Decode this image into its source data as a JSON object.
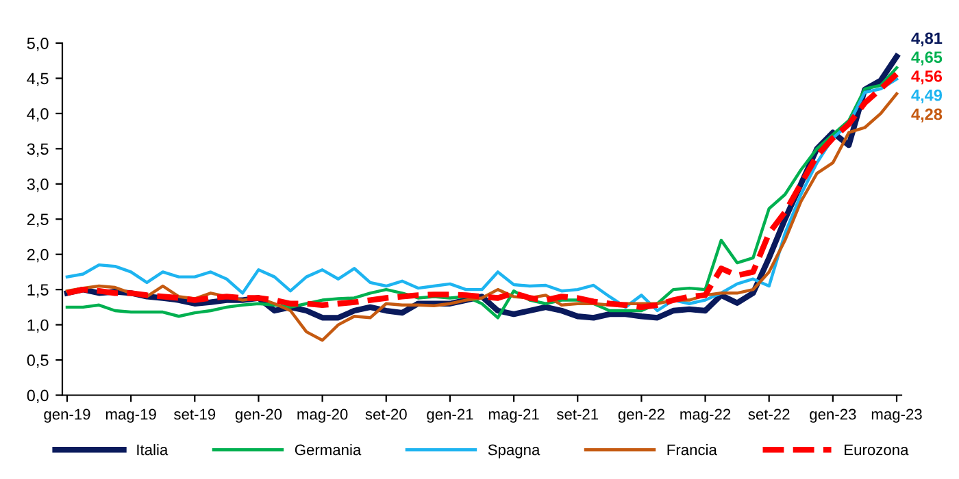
{
  "chart_data": {
    "type": "line",
    "categories": [
      "gen-19",
      null,
      null,
      null,
      "mag-19",
      null,
      null,
      null,
      "set-19",
      null,
      null,
      null,
      "gen-20",
      null,
      null,
      null,
      "mag-20",
      null,
      null,
      null,
      "set-20",
      null,
      null,
      null,
      "gen-21",
      null,
      null,
      null,
      "mag-21",
      null,
      null,
      null,
      "set-21",
      null,
      null,
      null,
      "gen-22",
      null,
      null,
      null,
      "mag-22",
      null,
      null,
      null,
      "set-22",
      null,
      null,
      null,
      "gen-23",
      null,
      null,
      null,
      "mag-23"
    ],
    "ylim": [
      0,
      5
    ],
    "yticks": [
      {
        "value": 0,
        "label": "0,0"
      },
      {
        "value": 0.5,
        "label": "0,5"
      },
      {
        "value": 1,
        "label": "1,0"
      },
      {
        "value": 1.5,
        "label": "1,5"
      },
      {
        "value": 2,
        "label": "2,0"
      },
      {
        "value": 2.5,
        "label": "2,5"
      },
      {
        "value": 3,
        "label": "3,0"
      },
      {
        "value": 3.5,
        "label": "3,5"
      },
      {
        "value": 4,
        "label": "4,0"
      },
      {
        "value": 4.5,
        "label": "4,5"
      },
      {
        "value": 5,
        "label": "5,0"
      }
    ],
    "grid": false,
    "legend": "bottom",
    "marker": "none",
    "series": [
      {
        "name": "Italia",
        "color": "#0a1a5c",
        "line_style": "solid",
        "values": [
          1.45,
          1.5,
          1.45,
          1.47,
          1.45,
          1.4,
          1.38,
          1.35,
          1.3,
          1.32,
          1.35,
          1.35,
          1.38,
          1.2,
          1.25,
          1.2,
          1.1,
          1.1,
          1.2,
          1.25,
          1.2,
          1.17,
          1.3,
          1.3,
          1.3,
          1.35,
          1.4,
          1.2,
          1.15,
          1.2,
          1.25,
          1.2,
          1.12,
          1.1,
          1.15,
          1.15,
          1.12,
          1.1,
          1.2,
          1.22,
          1.2,
          1.42,
          1.31,
          1.45,
          1.95,
          2.5,
          3.0,
          3.5,
          3.73,
          3.55,
          4.34,
          4.47,
          4.81
        ],
        "value_labels": [
          null,
          null,
          null,
          null,
          null,
          null,
          null,
          null,
          null,
          null,
          null,
          null,
          null,
          null,
          null,
          null,
          null,
          null,
          null,
          null,
          null,
          null,
          null,
          null,
          null,
          null,
          null,
          null,
          null,
          null,
          null,
          null,
          null,
          null,
          null,
          null,
          null,
          null,
          null,
          null,
          null,
          null,
          null,
          null,
          null,
          null,
          null,
          null,
          null,
          null,
          null,
          null,
          "4,81"
        ]
      },
      {
        "name": "Germania",
        "color": "#00b050",
        "line_style": "solid",
        "values": [
          1.25,
          1.25,
          1.28,
          1.2,
          1.18,
          1.18,
          1.18,
          1.12,
          1.17,
          1.2,
          1.25,
          1.28,
          1.3,
          1.28,
          1.25,
          1.3,
          1.35,
          1.37,
          1.38,
          1.45,
          1.5,
          1.45,
          1.38,
          1.4,
          1.38,
          1.4,
          1.3,
          1.1,
          1.48,
          1.35,
          1.3,
          1.35,
          1.35,
          1.3,
          1.2,
          1.2,
          1.2,
          1.3,
          1.5,
          1.52,
          1.5,
          2.2,
          1.88,
          1.95,
          2.65,
          2.85,
          3.2,
          3.5,
          3.7,
          3.9,
          4.35,
          4.4,
          4.65
        ],
        "value_labels": [
          null,
          null,
          null,
          null,
          null,
          null,
          null,
          null,
          null,
          null,
          null,
          null,
          null,
          null,
          null,
          null,
          null,
          null,
          null,
          null,
          null,
          null,
          null,
          null,
          null,
          null,
          null,
          null,
          null,
          null,
          null,
          null,
          null,
          null,
          null,
          null,
          null,
          null,
          null,
          null,
          null,
          null,
          null,
          null,
          null,
          null,
          null,
          null,
          null,
          null,
          null,
          null,
          "4,65"
        ]
      },
      {
        "name": "Spagna",
        "color": "#1eb4f0",
        "line_style": "solid",
        "values": [
          1.68,
          1.72,
          1.85,
          1.83,
          1.75,
          1.6,
          1.75,
          1.68,
          1.68,
          1.75,
          1.65,
          1.45,
          1.78,
          1.68,
          1.48,
          1.68,
          1.78,
          1.65,
          1.8,
          1.6,
          1.55,
          1.62,
          1.52,
          1.55,
          1.58,
          1.5,
          1.5,
          1.75,
          1.57,
          1.55,
          1.56,
          1.48,
          1.5,
          1.56,
          1.4,
          1.25,
          1.42,
          1.2,
          1.35,
          1.3,
          1.35,
          1.45,
          1.58,
          1.65,
          1.55,
          2.3,
          2.85,
          3.3,
          3.65,
          3.85,
          4.3,
          4.35,
          4.49
        ],
        "value_labels": [
          null,
          null,
          null,
          null,
          null,
          null,
          null,
          null,
          null,
          null,
          null,
          null,
          null,
          null,
          null,
          null,
          null,
          null,
          null,
          null,
          null,
          null,
          null,
          null,
          null,
          null,
          null,
          null,
          null,
          null,
          null,
          null,
          null,
          null,
          null,
          null,
          null,
          null,
          null,
          null,
          null,
          null,
          null,
          null,
          null,
          null,
          null,
          null,
          null,
          null,
          null,
          null,
          "4,49"
        ]
      },
      {
        "name": "Francia",
        "color": "#c55a11",
        "line_style": "solid",
        "values": [
          1.48,
          1.52,
          1.55,
          1.53,
          1.45,
          1.4,
          1.55,
          1.4,
          1.37,
          1.45,
          1.4,
          1.35,
          1.38,
          1.3,
          1.2,
          0.9,
          0.78,
          1.0,
          1.12,
          1.1,
          1.3,
          1.28,
          1.28,
          1.27,
          1.3,
          1.35,
          1.38,
          1.5,
          1.4,
          1.38,
          1.42,
          1.28,
          1.3,
          1.3,
          1.28,
          1.3,
          1.3,
          1.3,
          1.35,
          1.35,
          1.42,
          1.45,
          1.45,
          1.5,
          1.75,
          2.2,
          2.75,
          3.15,
          3.3,
          3.73,
          3.8,
          4.0,
          4.28
        ],
        "value_labels": [
          null,
          null,
          null,
          null,
          null,
          null,
          null,
          null,
          null,
          null,
          null,
          null,
          null,
          null,
          null,
          null,
          null,
          null,
          null,
          null,
          null,
          null,
          null,
          null,
          null,
          null,
          null,
          null,
          null,
          null,
          null,
          null,
          null,
          null,
          null,
          null,
          null,
          null,
          null,
          null,
          null,
          null,
          null,
          null,
          null,
          null,
          null,
          null,
          null,
          null,
          null,
          null,
          "4,28"
        ]
      },
      {
        "name": "Eurozona",
        "color": "#ff0000",
        "line_style": "dashed",
        "values": [
          1.45,
          1.5,
          1.48,
          1.45,
          1.45,
          1.42,
          1.4,
          1.38,
          1.35,
          1.38,
          1.4,
          1.38,
          1.38,
          1.35,
          1.3,
          1.3,
          1.28,
          1.3,
          1.32,
          1.35,
          1.38,
          1.4,
          1.42,
          1.43,
          1.43,
          1.42,
          1.4,
          1.38,
          1.45,
          1.38,
          1.35,
          1.4,
          1.38,
          1.33,
          1.3,
          1.28,
          1.25,
          1.28,
          1.35,
          1.4,
          1.42,
          1.8,
          1.7,
          1.75,
          2.3,
          2.6,
          3.0,
          3.4,
          3.65,
          3.85,
          4.15,
          4.35,
          4.56
        ],
        "value_labels": [
          null,
          null,
          null,
          null,
          null,
          null,
          null,
          null,
          null,
          null,
          null,
          null,
          null,
          null,
          null,
          null,
          null,
          null,
          null,
          null,
          null,
          null,
          null,
          null,
          null,
          null,
          null,
          null,
          null,
          null,
          null,
          null,
          null,
          null,
          null,
          null,
          null,
          null,
          null,
          null,
          null,
          null,
          null,
          null,
          null,
          null,
          null,
          null,
          null,
          null,
          null,
          null,
          "4,56"
        ]
      }
    ]
  }
}
